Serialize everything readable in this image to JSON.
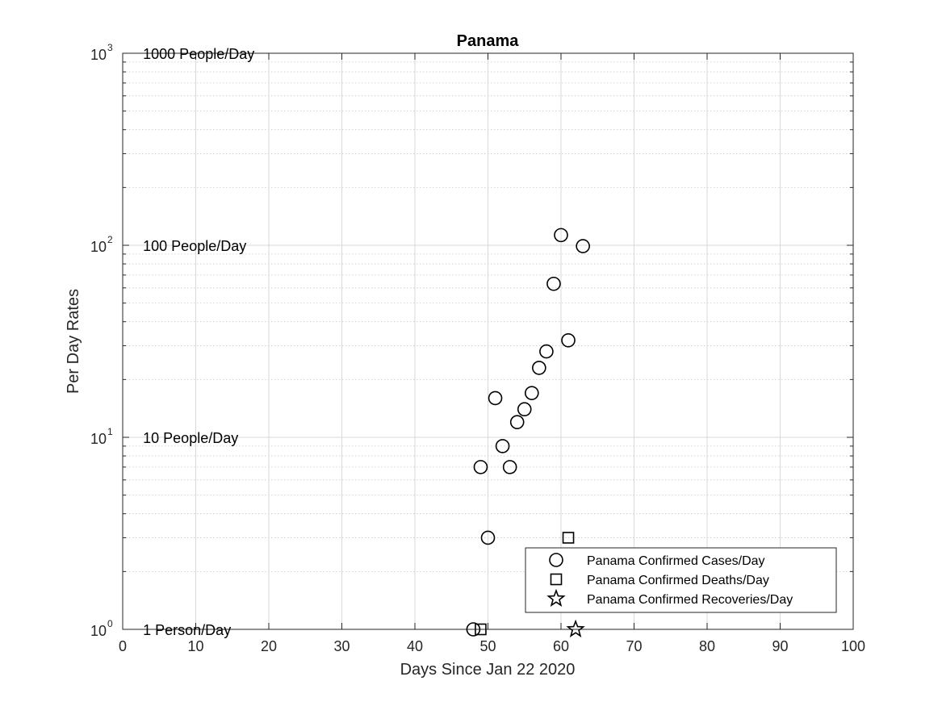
{
  "chart_data": {
    "type": "scatter",
    "title": "Panama",
    "xlabel": "Days Since Jan 22 2020",
    "ylabel": "Per Day Rates",
    "xlim": [
      0,
      100
    ],
    "ylim": [
      1,
      1000
    ],
    "yscale": "log",
    "grid": true,
    "legend_position": "bottom-right",
    "x_ticks": [
      {
        "value": 0,
        "label": "0"
      },
      {
        "value": 10,
        "label": "10"
      },
      {
        "value": 20,
        "label": "20"
      },
      {
        "value": 30,
        "label": "30"
      },
      {
        "value": 40,
        "label": "40"
      },
      {
        "value": 50,
        "label": "50"
      },
      {
        "value": 60,
        "label": "60"
      },
      {
        "value": 70,
        "label": "70"
      },
      {
        "value": 80,
        "label": "80"
      },
      {
        "value": 90,
        "label": "90"
      },
      {
        "value": 100,
        "label": "100"
      }
    ],
    "y_ticks": [
      {
        "value": 1,
        "base": "10",
        "exp": "0"
      },
      {
        "value": 10,
        "base": "10",
        "exp": "1"
      },
      {
        "value": 100,
        "base": "10",
        "exp": "2"
      },
      {
        "value": 1000,
        "base": "10",
        "exp": "3"
      }
    ],
    "annotations": [
      {
        "text": "1000 People/Day",
        "x": 3,
        "y": 1000
      },
      {
        "text": "100 People/Day",
        "x": 3,
        "y": 100
      },
      {
        "text": "10 People/Day",
        "x": 3,
        "y": 10
      },
      {
        "text": "1 Person/Day",
        "x": 3,
        "y": 1
      }
    ],
    "series": [
      {
        "name": "Panama Confirmed Cases/Day",
        "marker": "circle",
        "points": [
          {
            "x": 48,
            "y": 1
          },
          {
            "x": 49,
            "y": 7
          },
          {
            "x": 50,
            "y": 3
          },
          {
            "x": 51,
            "y": 16
          },
          {
            "x": 52,
            "y": 9
          },
          {
            "x": 53,
            "y": 7
          },
          {
            "x": 54,
            "y": 12
          },
          {
            "x": 55,
            "y": 14
          },
          {
            "x": 56,
            "y": 17
          },
          {
            "x": 57,
            "y": 23
          },
          {
            "x": 58,
            "y": 28
          },
          {
            "x": 59,
            "y": 63
          },
          {
            "x": 60,
            "y": 113
          },
          {
            "x": 61,
            "y": 32
          },
          {
            "x": 63,
            "y": 99
          }
        ]
      },
      {
        "name": "Panama Confirmed Deaths/Day",
        "marker": "square",
        "points": [
          {
            "x": 49,
            "y": 1
          },
          {
            "x": 61,
            "y": 3
          }
        ]
      },
      {
        "name": "Panama Confirmed Recoveries/Day",
        "marker": "star",
        "points": [
          {
            "x": 62,
            "y": 1
          }
        ]
      }
    ]
  }
}
